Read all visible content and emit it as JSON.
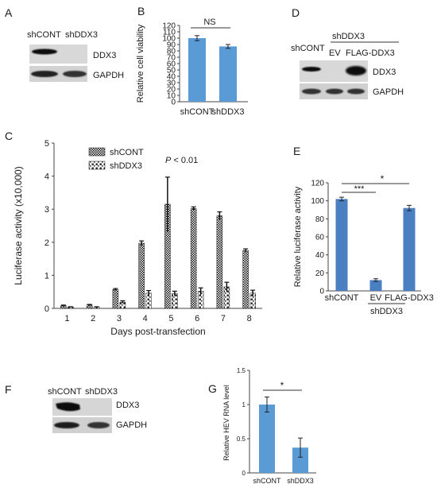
{
  "panels": {
    "A": {
      "letter": "A",
      "lanes": [
        "shCONT",
        "shDDX3"
      ],
      "rows": [
        "DDX3",
        "GAPDH"
      ]
    },
    "B": {
      "letter": "B",
      "significance": "NS"
    },
    "C": {
      "letter": "C",
      "p_label_italic": "P",
      "p_label_rest": " < 0.01"
    },
    "D": {
      "letter": "D",
      "lane_control": "shCONT",
      "group_label": "shDDX3",
      "group_lanes": [
        "EV",
        "FLAG-DDX3"
      ],
      "rows": [
        "DDX3",
        "GAPDH"
      ]
    },
    "E": {
      "letter": "E",
      "sig_top": "*",
      "sig_low": "***",
      "group_label": "shDDX3"
    },
    "F": {
      "letter": "F",
      "lanes": [
        "shCONT",
        "shDDX3"
      ],
      "rows": [
        "DDX3",
        "GAPDH"
      ]
    },
    "G": {
      "letter": "G",
      "significance": "*"
    }
  },
  "chart_data": [
    {
      "id": "B",
      "type": "bar",
      "categories": [
        "shCONT",
        "shDDX3"
      ],
      "values": [
        100,
        87
      ],
      "errors": [
        4,
        3
      ],
      "ylabel": "Relative cell viability",
      "ylim": [
        0,
        120
      ],
      "yticks": [
        0,
        10,
        20,
        30,
        40,
        50,
        60,
        70,
        80,
        90,
        100,
        110,
        120
      ],
      "color": "#5b9bd5"
    },
    {
      "id": "C",
      "type": "bar",
      "categories": [
        "1",
        "2",
        "3",
        "4",
        "5",
        "6",
        "7",
        "8"
      ],
      "series": [
        {
          "name": "shCONT",
          "values": [
            0.08,
            0.1,
            0.57,
            1.97,
            3.15,
            3.02,
            2.8,
            1.75
          ],
          "errors": [
            0.02,
            0.02,
            0.03,
            0.07,
            0.82,
            0.05,
            0.12,
            0.05
          ]
        },
        {
          "name": "shDDX3",
          "values": [
            0.04,
            0.04,
            0.19,
            0.46,
            0.45,
            0.52,
            0.65,
            0.46
          ],
          "errors": [
            0.01,
            0.01,
            0.04,
            0.08,
            0.07,
            0.1,
            0.14,
            0.09
          ]
        }
      ],
      "xlabel": "Days post-transfection",
      "ylabel": "Luciferase activity (x10,000)",
      "ylim": [
        0,
        5
      ],
      "yticks": [
        0,
        1,
        2,
        3,
        4,
        5
      ],
      "legend": "top-left"
    },
    {
      "id": "E",
      "type": "bar",
      "categories": [
        "shCONT",
        "EV",
        "FLAG-DDX3"
      ],
      "values": [
        102,
        12,
        92
      ],
      "errors": [
        2,
        1.5,
        3
      ],
      "ylabel": "Relative luciferase activity",
      "ylim": [
        0,
        120
      ],
      "yticks": [
        0,
        20,
        40,
        60,
        80,
        100,
        120
      ],
      "color": "#4a7fc1"
    },
    {
      "id": "G",
      "type": "bar",
      "categories": [
        "shCONT",
        "shDDX3"
      ],
      "values": [
        1.0,
        0.37
      ],
      "errors": [
        0.11,
        0.14
      ],
      "ylabel": "Relative HEV RNA level",
      "ylim": [
        0,
        1.5
      ],
      "yticks": [
        0,
        0.5,
        1,
        1.5
      ],
      "yticklabels": [
        "0",
        "0.5",
        "1",
        "1.5"
      ],
      "color": "#5b9bd5"
    }
  ]
}
